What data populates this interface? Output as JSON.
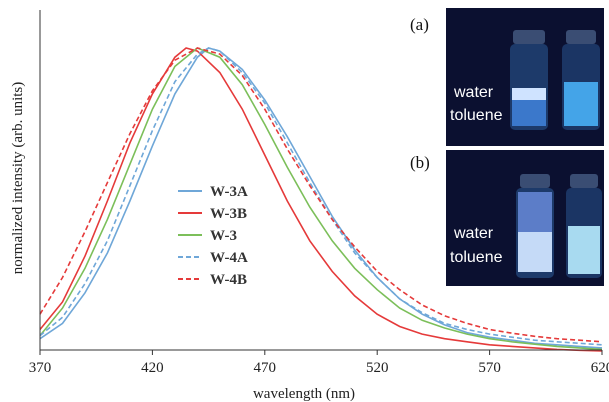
{
  "chart_data": {
    "type": "line",
    "xlabel": "wavelength (nm)",
    "ylabel": "normalized intensity (arb. units)",
    "xlim": [
      370,
      620
    ],
    "ylim": [
      0,
      1.05
    ],
    "xticks": [
      370,
      420,
      470,
      520,
      570,
      620
    ],
    "xtick_labels": [
      "370",
      "420",
      "470",
      "520",
      "570",
      "620"
    ],
    "grid": false,
    "legend_position": "center-left",
    "series": [
      {
        "name": "W-3A",
        "color": "#6fa7d8",
        "style": "solid",
        "x": [
          370,
          380,
          390,
          400,
          410,
          420,
          430,
          440,
          445,
          450,
          460,
          470,
          480,
          490,
          500,
          510,
          520,
          530,
          540,
          550,
          560,
          570,
          580,
          590,
          600,
          610,
          620
        ],
        "y": [
          0.05,
          0.1,
          0.2,
          0.33,
          0.5,
          0.68,
          0.85,
          0.97,
          1.0,
          0.99,
          0.93,
          0.83,
          0.71,
          0.58,
          0.45,
          0.34,
          0.25,
          0.18,
          0.13,
          0.095,
          0.07,
          0.055,
          0.045,
          0.035,
          0.03,
          0.025,
          0.02
        ]
      },
      {
        "name": "W-3B",
        "color": "#e53a3a",
        "style": "solid",
        "x": [
          370,
          380,
          390,
          400,
          410,
          420,
          430,
          435,
          440,
          450,
          460,
          470,
          480,
          490,
          500,
          510,
          520,
          530,
          540,
          550,
          560,
          570,
          580,
          590,
          600,
          610,
          620
        ],
        "y": [
          0.08,
          0.17,
          0.32,
          0.5,
          0.69,
          0.85,
          0.97,
          1.0,
          0.99,
          0.92,
          0.8,
          0.65,
          0.5,
          0.37,
          0.27,
          0.19,
          0.13,
          0.09,
          0.065,
          0.05,
          0.04,
          0.03,
          0.025,
          0.02,
          0.015,
          0.012,
          0.01
        ]
      },
      {
        "name": "W-3",
        "color": "#7cbf5a",
        "style": "solid",
        "x": [
          370,
          380,
          390,
          400,
          410,
          420,
          430,
          440,
          450,
          460,
          470,
          480,
          490,
          500,
          510,
          520,
          530,
          540,
          550,
          560,
          570,
          580,
          590,
          600,
          610,
          620
        ],
        "y": [
          0.06,
          0.15,
          0.28,
          0.44,
          0.62,
          0.8,
          0.94,
          1.0,
          0.97,
          0.88,
          0.75,
          0.61,
          0.48,
          0.37,
          0.28,
          0.21,
          0.15,
          0.11,
          0.085,
          0.065,
          0.05,
          0.04,
          0.032,
          0.025,
          0.02,
          0.015
        ]
      },
      {
        "name": "W-4A",
        "color": "#6fa7d8",
        "style": "dashed",
        "x": [
          370,
          380,
          390,
          400,
          410,
          420,
          430,
          440,
          445,
          450,
          460,
          470,
          480,
          490,
          500,
          510,
          520,
          530,
          540,
          550,
          560,
          570,
          580,
          590,
          600,
          610,
          620
        ],
        "y": [
          0.06,
          0.12,
          0.23,
          0.37,
          0.55,
          0.73,
          0.89,
          0.98,
          1.0,
          0.99,
          0.92,
          0.82,
          0.69,
          0.56,
          0.44,
          0.33,
          0.25,
          0.18,
          0.135,
          0.1,
          0.08,
          0.065,
          0.055,
          0.045,
          0.04,
          0.035,
          0.03
        ]
      },
      {
        "name": "W-4B",
        "color": "#e53a3a",
        "style": "dashed",
        "x": [
          370,
          380,
          390,
          400,
          410,
          420,
          430,
          440,
          450,
          460,
          470,
          480,
          490,
          500,
          510,
          520,
          530,
          540,
          550,
          560,
          570,
          580,
          590,
          600,
          610,
          620
        ],
        "y": [
          0.13,
          0.25,
          0.4,
          0.56,
          0.72,
          0.86,
          0.96,
          1.0,
          0.98,
          0.91,
          0.8,
          0.67,
          0.55,
          0.44,
          0.35,
          0.27,
          0.21,
          0.16,
          0.125,
          0.1,
          0.08,
          0.068,
          0.058,
          0.05,
          0.045,
          0.04
        ]
      }
    ]
  },
  "panels": [
    {
      "label": "(a)",
      "line1": "water",
      "line2": "toluene"
    },
    {
      "label": "(b)",
      "line1": "water",
      "line2": "toluene"
    }
  ]
}
